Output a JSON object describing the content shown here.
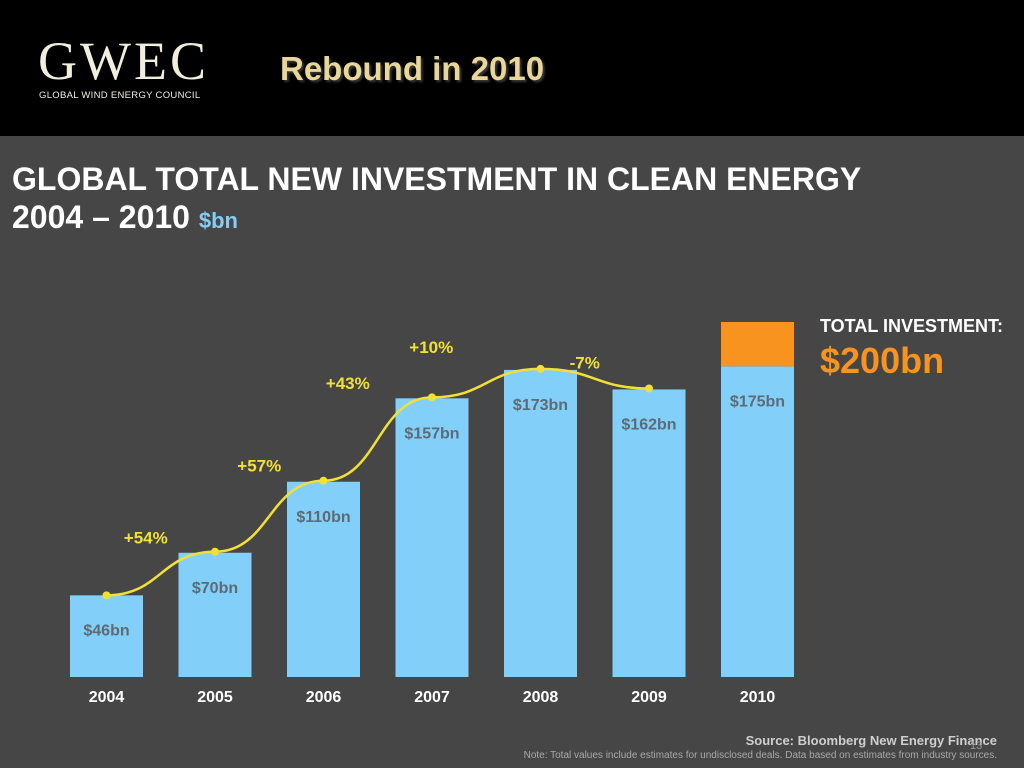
{
  "header": {
    "logo_word": "GWEC",
    "logo_subtitle": "GLOBAL WIND ENERGY COUNCIL",
    "slide_title": "Rebound in 2010"
  },
  "chart_data": {
    "type": "bar",
    "title": "GLOBAL TOTAL NEW INVESTMENT IN CLEAN ENERGY",
    "subtitle": "2004 – 2010",
    "unit": "$bn",
    "categories": [
      "2004",
      "2005",
      "2006",
      "2007",
      "2008",
      "2009",
      "2010"
    ],
    "values": [
      46,
      70,
      110,
      157,
      173,
      162,
      175
    ],
    "value_labels": [
      "$46bn",
      "$70bn",
      "$110bn",
      "$157bn",
      "$173bn",
      "$162bn",
      "$175bn"
    ],
    "extra_segment": {
      "category": "2010",
      "base": 175,
      "top": 200
    },
    "growth_labels": [
      "+54%",
      "+57%",
      "+43%",
      "+10%",
      "-7%"
    ],
    "total_label": "TOTAL INVESTMENT:",
    "total_value": "$200bn",
    "ylim": [
      0,
      200
    ],
    "grid": false,
    "colors": {
      "bar": "#82cffa",
      "extra": "#f7931e",
      "line": "#f2e035",
      "growth_text": "#f2e035",
      "label_text": "#5d6b74",
      "year_text": "#ffffff"
    }
  },
  "footer": {
    "source": "Source: Bloomberg New Energy Finance",
    "note": "Note: Total values include estimates for undisclosed deals. Data based on estimates from industry sources.",
    "page_number": "13"
  }
}
